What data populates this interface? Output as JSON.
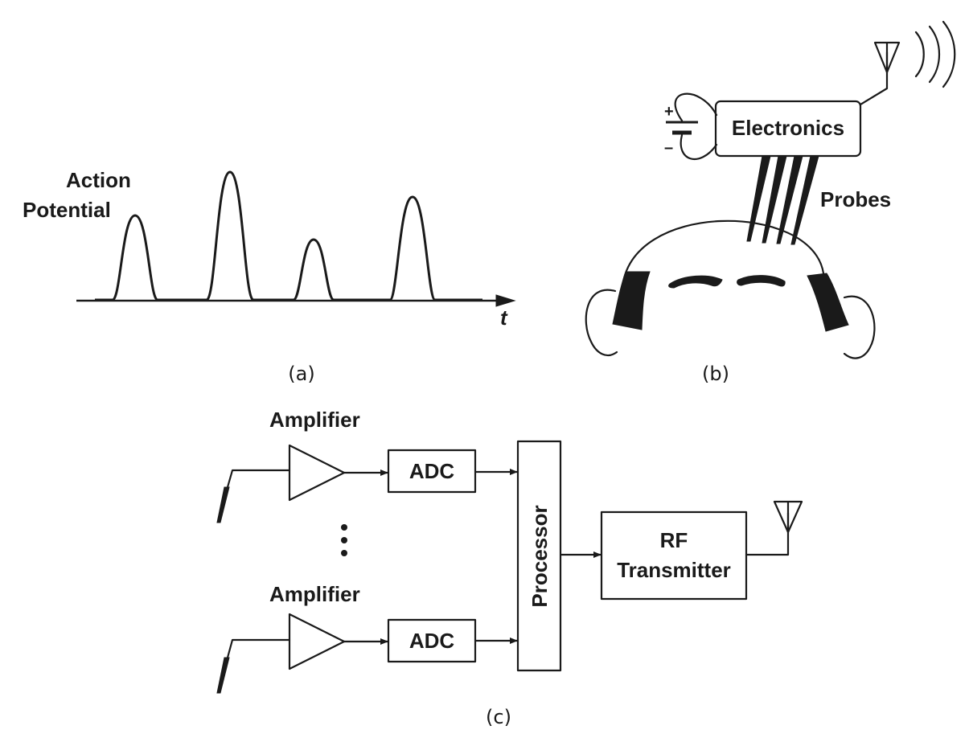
{
  "panel_a": {
    "ylabel_line1": "Action",
    "ylabel_line2": "Potential",
    "xlabel": "t",
    "caption": "(a)"
  },
  "panel_b": {
    "electronics_label": "Electronics",
    "probes_label": "Probes",
    "battery_plus": "+",
    "battery_minus": "–",
    "caption": "(b)"
  },
  "panel_c": {
    "amplifier_top_label": "Amplifier",
    "amplifier_bottom_label": "Amplifier",
    "adc_top_label": "ADC",
    "adc_bottom_label": "ADC",
    "processor_label": "Processor",
    "rf_line1": "RF",
    "rf_line2": "Transmitter",
    "caption": "(c)"
  }
}
